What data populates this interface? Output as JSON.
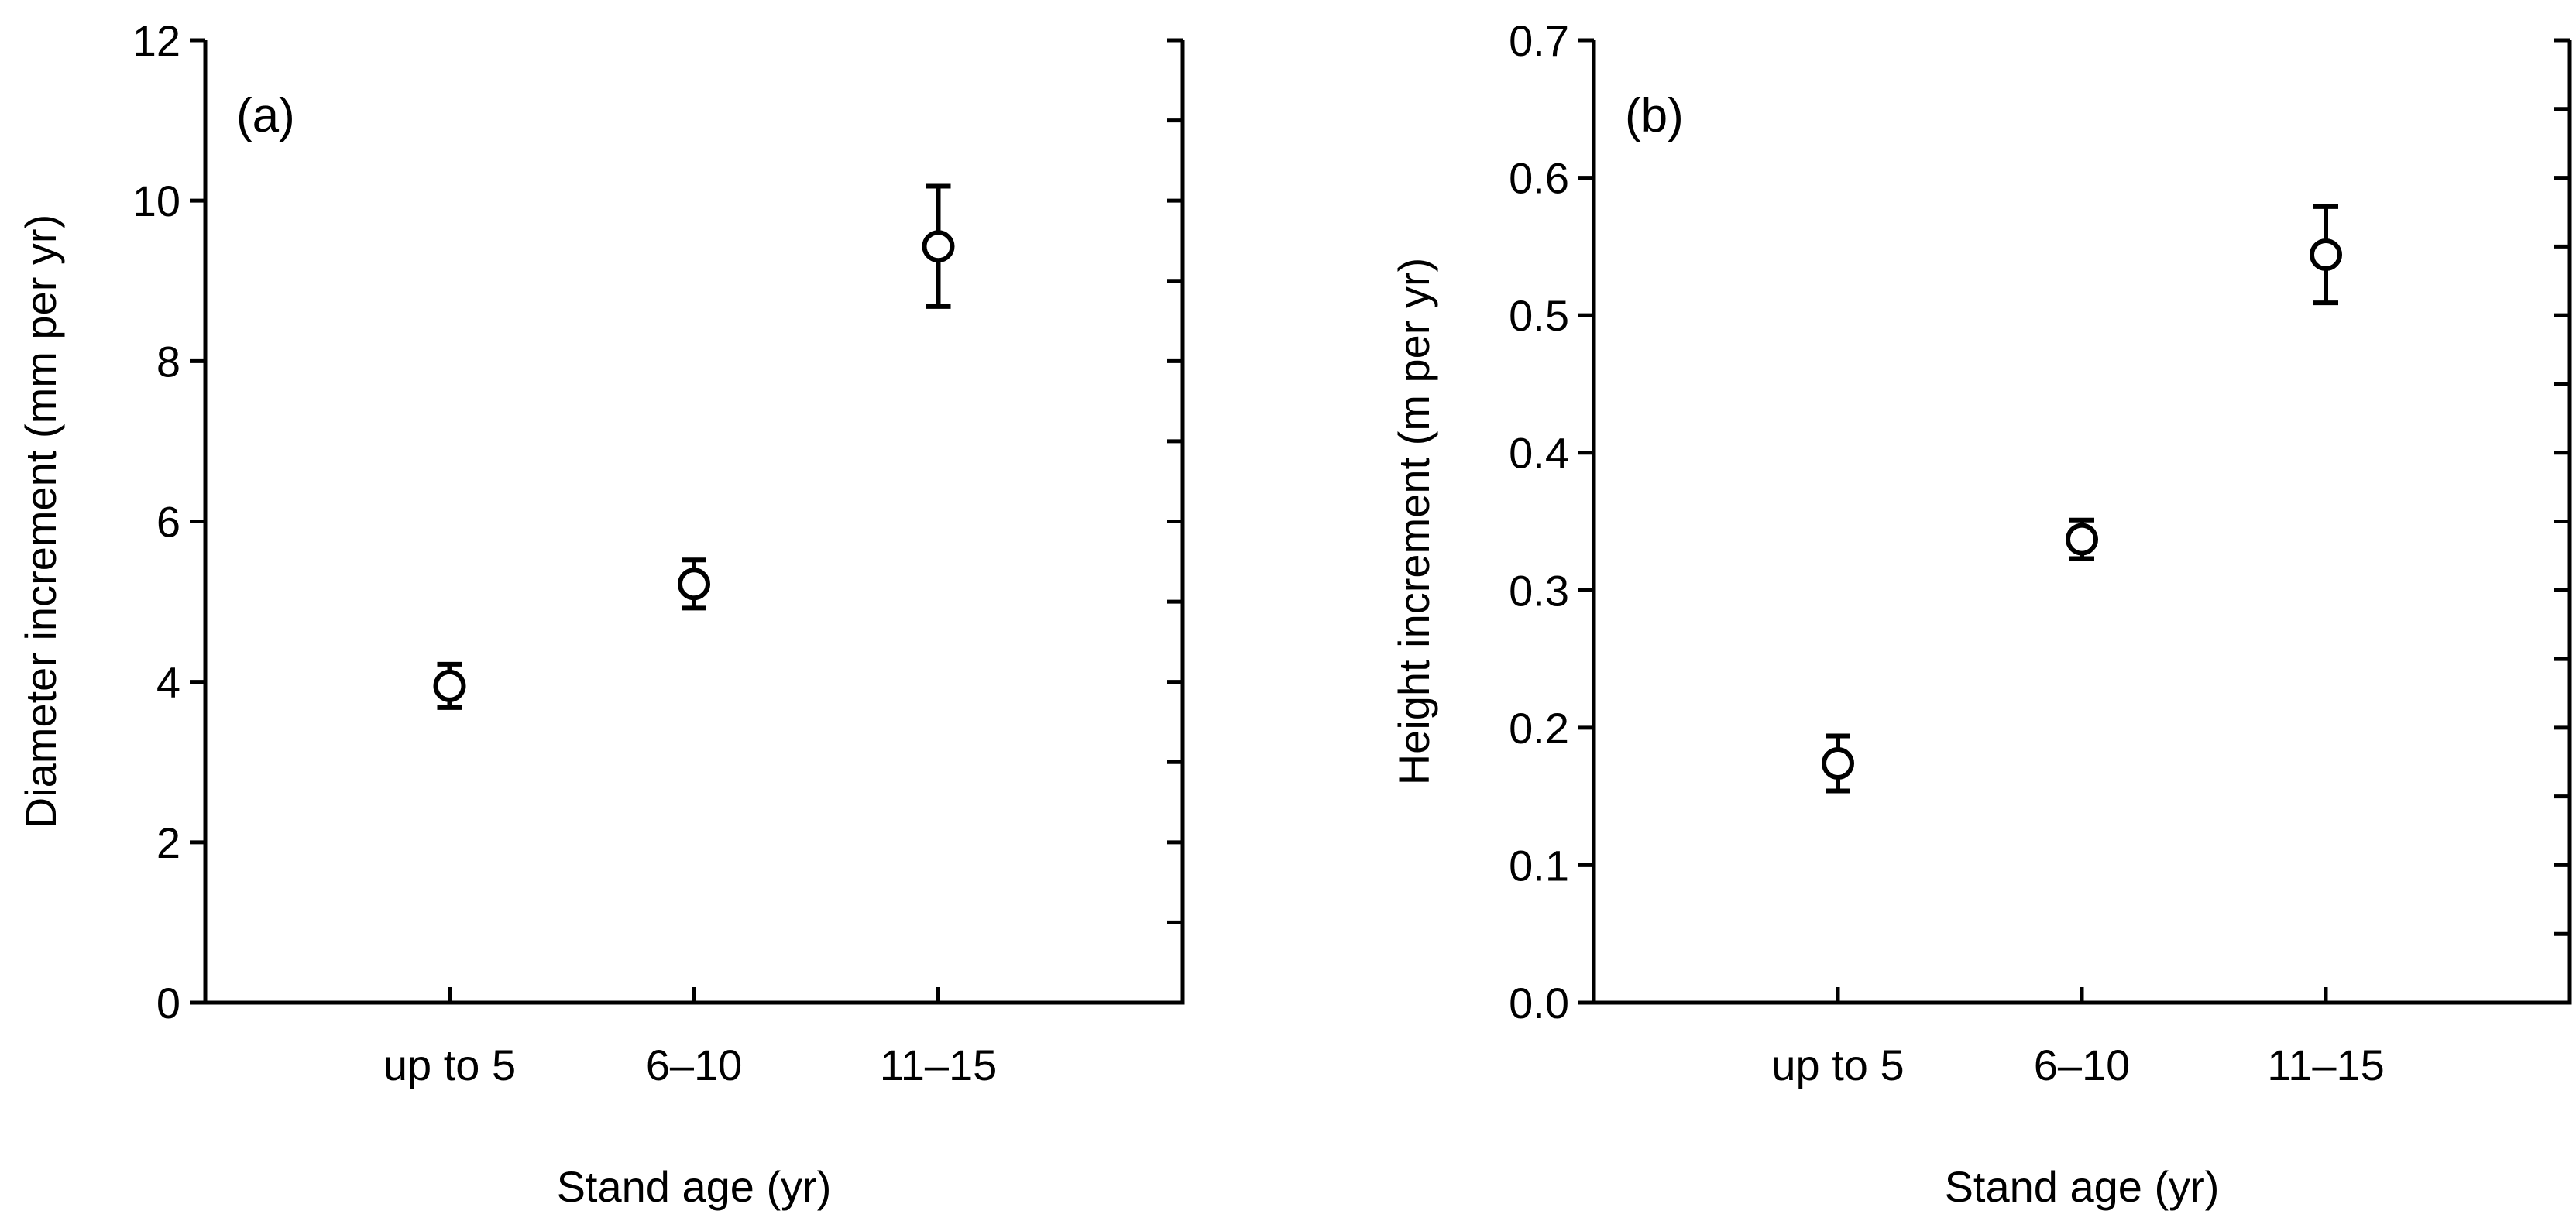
{
  "chart_data": [
    {
      "type": "scatter",
      "panel_label": "(a)",
      "categories": [
        "up to 5",
        "6–10",
        "11–15"
      ],
      "values": [
        3.95,
        5.22,
        9.43
      ],
      "errors": [
        0.27,
        0.3,
        0.75
      ],
      "xlabel": "Stand age (yr)",
      "ylabel": "Diameter increment (mm per yr)",
      "ylim": [
        0,
        12
      ],
      "yticks": [
        0,
        2,
        4,
        6,
        8,
        10,
        12
      ],
      "ytick_labels": [
        "0",
        "2",
        "4",
        "6",
        "8",
        "10",
        "12"
      ],
      "grid": false,
      "marker": "open-circle"
    },
    {
      "type": "scatter",
      "panel_label": "(b)",
      "categories": [
        "up to 5",
        "6–10",
        "11–15"
      ],
      "values": [
        0.174,
        0.337,
        0.544
      ],
      "errors": [
        0.02,
        0.014,
        0.035
      ],
      "xlabel": "Stand age (yr)",
      "ylabel": "Height increment (m per yr)",
      "ylim": [
        0,
        0.7
      ],
      "yticks": [
        0,
        0.1,
        0.2,
        0.3,
        0.4,
        0.5,
        0.6,
        0.7
      ],
      "ytick_labels": [
        "0.0",
        "0.1",
        "0.2",
        "0.3",
        "0.4",
        "0.5",
        "0.6",
        "0.7"
      ],
      "grid": false,
      "marker": "open-circle"
    }
  ]
}
